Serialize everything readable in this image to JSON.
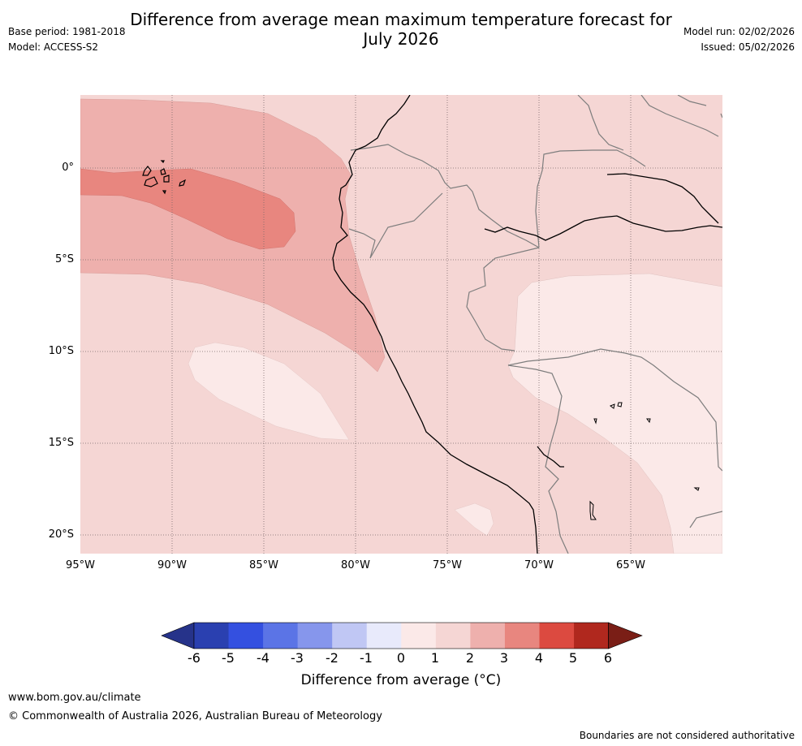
{
  "header": {
    "title_line1": "Difference from average mean maximum temperature forecast for",
    "title_line2": "July 2026",
    "base_period": "Base period: 1981-2018",
    "model": "Model: ACCESS-S2",
    "model_run": "Model run: 02/02/2026",
    "issued": "Issued: 05/02/2026"
  },
  "map": {
    "lat_labels": [
      "0°",
      "5°S",
      "10°S",
      "15°S",
      "20°S"
    ],
    "lon_labels": [
      "95°W",
      "90°W",
      "85°W",
      "80°W",
      "75°W",
      "70°W",
      "65°W"
    ]
  },
  "colorbar": {
    "colors": [
      "#26338a",
      "#2a40b0",
      "#3450e0",
      "#5b74e6",
      "#8696ec",
      "#c0c7f4",
      "#e8eafb",
      "#fbe9e8",
      "#f5d6d4",
      "#eeb0ad",
      "#e8867f",
      "#dc4a40",
      "#b0281e",
      "#7a1e16"
    ],
    "ticks": [
      "-6",
      "-5",
      "-4",
      "-3",
      "-2",
      "-1",
      "0",
      "1",
      "2",
      "3",
      "4",
      "5",
      "6"
    ],
    "label": "Difference from average (°C)"
  },
  "footer": {
    "url": "www.bom.gov.au/climate",
    "copyright": "© Commonwealth of Australia 2026, Australian Bureau of Meteorology",
    "disclaimer": "Boundaries are not considered authoritative"
  }
}
